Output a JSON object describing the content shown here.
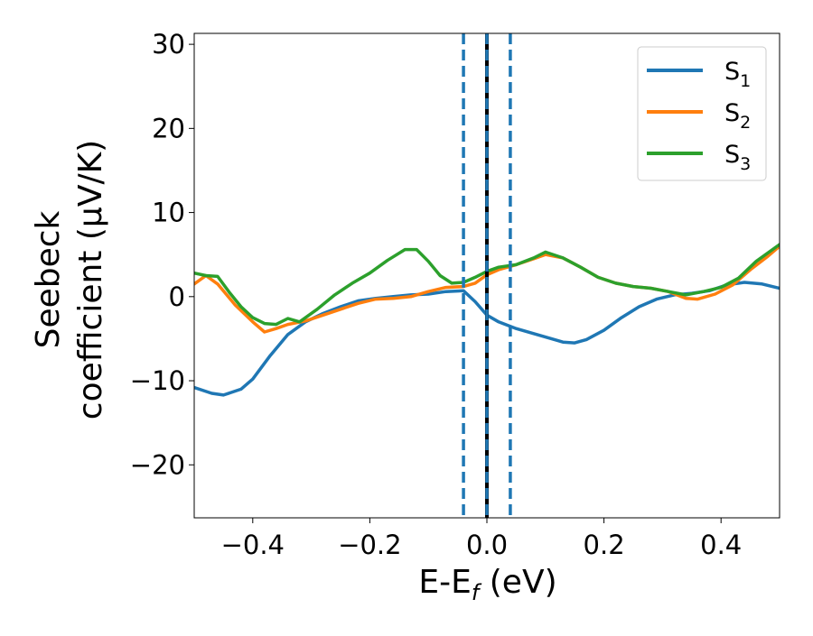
{
  "chart_data": {
    "type": "line",
    "xlabel": "E-E",
    "xlabel_sub": "f",
    "xlabel_unit": " (eV)",
    "ylabel_line1": "Seebeck",
    "ylabel_line2": "coefficient  (μV/K)",
    "xlim": [
      -0.5,
      0.5
    ],
    "ylim": [
      -26.3,
      31.3
    ],
    "x_ticks": [
      -0.4,
      -0.2,
      0.0,
      0.2,
      0.4
    ],
    "x_tick_labels": [
      "−0.4",
      "−0.2",
      "0.0",
      "0.2",
      "0.4"
    ],
    "y_ticks": [
      -20,
      -10,
      0,
      10,
      20,
      30
    ],
    "y_tick_labels": [
      "−20",
      "−10",
      "0",
      "10",
      "20",
      "30"
    ],
    "grid": false,
    "legend_position": "top-right",
    "colors": {
      "S1": "#1f77b4",
      "S2": "#ff7f0e",
      "S3": "#2ca02c",
      "fermi_line": "#000000",
      "bound_lines": "#1f77b4"
    },
    "vertical_lines": [
      {
        "x": 0.0,
        "style": "solid",
        "color": "#000000"
      },
      {
        "x": 0.0,
        "style": "dashed",
        "color": "#1f77b4"
      },
      {
        "x": -0.04,
        "style": "dashed",
        "color": "#1f77b4"
      },
      {
        "x": 0.04,
        "style": "dashed",
        "color": "#1f77b4"
      }
    ],
    "series": [
      {
        "name": "S1",
        "legend_main": "S",
        "legend_sub": "1",
        "color": "#1f77b4",
        "points": [
          [
            -0.5,
            -10.8
          ],
          [
            -0.47,
            -11.5
          ],
          [
            -0.45,
            -11.7
          ],
          [
            -0.42,
            -11.0
          ],
          [
            -0.4,
            -9.8
          ],
          [
            -0.37,
            -7.0
          ],
          [
            -0.34,
            -4.5
          ],
          [
            -0.31,
            -3.0
          ],
          [
            -0.28,
            -2.0
          ],
          [
            -0.25,
            -1.2
          ],
          [
            -0.22,
            -0.5
          ],
          [
            -0.19,
            -0.2
          ],
          [
            -0.16,
            0.0
          ],
          [
            -0.13,
            0.2
          ],
          [
            -0.1,
            0.3
          ],
          [
            -0.07,
            0.6
          ],
          [
            -0.04,
            0.7
          ],
          [
            -0.02,
            -0.6
          ],
          [
            0.0,
            -2.2
          ],
          [
            0.02,
            -3.0
          ],
          [
            0.05,
            -3.8
          ],
          [
            0.08,
            -4.4
          ],
          [
            0.11,
            -5.0
          ],
          [
            0.13,
            -5.4
          ],
          [
            0.15,
            -5.5
          ],
          [
            0.17,
            -5.1
          ],
          [
            0.2,
            -4.0
          ],
          [
            0.23,
            -2.5
          ],
          [
            0.26,
            -1.2
          ],
          [
            0.29,
            -0.3
          ],
          [
            0.32,
            0.2
          ],
          [
            0.35,
            0.4
          ],
          [
            0.38,
            0.7
          ],
          [
            0.41,
            1.4
          ],
          [
            0.44,
            1.7
          ],
          [
            0.47,
            1.5
          ],
          [
            0.5,
            1.0
          ]
        ]
      },
      {
        "name": "S2",
        "legend_main": "S",
        "legend_sub": "2",
        "color": "#ff7f0e",
        "points": [
          [
            -0.5,
            1.5
          ],
          [
            -0.48,
            2.5
          ],
          [
            -0.46,
            1.5
          ],
          [
            -0.43,
            -1.0
          ],
          [
            -0.4,
            -3.0
          ],
          [
            -0.38,
            -4.2
          ],
          [
            -0.36,
            -3.8
          ],
          [
            -0.34,
            -3.3
          ],
          [
            -0.31,
            -2.9
          ],
          [
            -0.28,
            -2.2
          ],
          [
            -0.25,
            -1.5
          ],
          [
            -0.22,
            -0.8
          ],
          [
            -0.19,
            -0.3
          ],
          [
            -0.16,
            -0.2
          ],
          [
            -0.13,
            0.0
          ],
          [
            -0.1,
            0.6
          ],
          [
            -0.07,
            1.1
          ],
          [
            -0.04,
            1.2
          ],
          [
            -0.02,
            1.6
          ],
          [
            0.0,
            2.6
          ],
          [
            0.02,
            3.2
          ],
          [
            0.05,
            3.8
          ],
          [
            0.08,
            4.5
          ],
          [
            0.1,
            5.0
          ],
          [
            0.13,
            4.6
          ],
          [
            0.16,
            3.5
          ],
          [
            0.19,
            2.3
          ],
          [
            0.22,
            1.6
          ],
          [
            0.25,
            1.2
          ],
          [
            0.28,
            1.0
          ],
          [
            0.31,
            0.6
          ],
          [
            0.34,
            -0.2
          ],
          [
            0.36,
            -0.3
          ],
          [
            0.39,
            0.3
          ],
          [
            0.42,
            1.4
          ],
          [
            0.45,
            3.2
          ],
          [
            0.48,
            4.8
          ],
          [
            0.5,
            6.0
          ]
        ]
      },
      {
        "name": "S3",
        "legend_main": "S",
        "legend_sub": "3",
        "color": "#2ca02c",
        "points": [
          [
            -0.5,
            2.8
          ],
          [
            -0.48,
            2.5
          ],
          [
            -0.46,
            2.4
          ],
          [
            -0.44,
            0.5
          ],
          [
            -0.42,
            -1.2
          ],
          [
            -0.4,
            -2.5
          ],
          [
            -0.38,
            -3.2
          ],
          [
            -0.36,
            -3.3
          ],
          [
            -0.34,
            -2.6
          ],
          [
            -0.32,
            -3.0
          ],
          [
            -0.29,
            -1.5
          ],
          [
            -0.26,
            0.2
          ],
          [
            -0.23,
            1.6
          ],
          [
            -0.2,
            2.8
          ],
          [
            -0.17,
            4.3
          ],
          [
            -0.14,
            5.6
          ],
          [
            -0.12,
            5.6
          ],
          [
            -0.1,
            4.2
          ],
          [
            -0.08,
            2.5
          ],
          [
            -0.06,
            1.6
          ],
          [
            -0.04,
            1.7
          ],
          [
            -0.02,
            2.3
          ],
          [
            0.0,
            3.0
          ],
          [
            0.02,
            3.5
          ],
          [
            0.05,
            3.8
          ],
          [
            0.08,
            4.6
          ],
          [
            0.1,
            5.3
          ],
          [
            0.13,
            4.6
          ],
          [
            0.16,
            3.5
          ],
          [
            0.19,
            2.3
          ],
          [
            0.22,
            1.6
          ],
          [
            0.25,
            1.2
          ],
          [
            0.28,
            1.0
          ],
          [
            0.31,
            0.6
          ],
          [
            0.34,
            0.2
          ],
          [
            0.37,
            0.6
          ],
          [
            0.4,
            1.1
          ],
          [
            0.43,
            2.2
          ],
          [
            0.46,
            4.2
          ],
          [
            0.5,
            6.2
          ]
        ]
      }
    ]
  }
}
